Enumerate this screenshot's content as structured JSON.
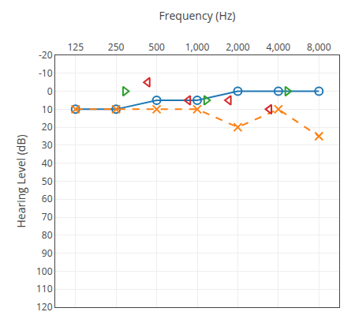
{
  "chart_data": {
    "type": "line",
    "xlabel": "Frequency (Hz)",
    "ylabel": "Hearing Level (dB)",
    "categories": [
      "125",
      "250",
      "500",
      "1,000",
      "2,000",
      "4,000",
      "8,000"
    ],
    "series": [
      {
        "type": "line",
        "marker": "circle-open",
        "line_style": "solid",
        "values": [
          10,
          10,
          5,
          5,
          0,
          0,
          0
        ]
      },
      {
        "type": "line",
        "marker": "x-thin-open",
        "line_style": "dash",
        "values": [
          10,
          10,
          10,
          10,
          20,
          10,
          25
        ]
      },
      {
        "type": "scatter",
        "marker": "triangle-right-open",
        "values": [
          null,
          0,
          null,
          5,
          null,
          0,
          null
        ]
      },
      {
        "type": "scatter",
        "marker": "triangle-left-open",
        "values": [
          null,
          null,
          -5,
          5,
          5,
          10,
          null
        ]
      }
    ],
    "ylim": [
      120,
      -20
    ],
    "yticks": [
      -20,
      -10,
      0,
      10,
      20,
      30,
      40,
      50,
      60,
      70,
      80,
      90,
      100,
      110,
      120
    ],
    "grid": true
  }
}
